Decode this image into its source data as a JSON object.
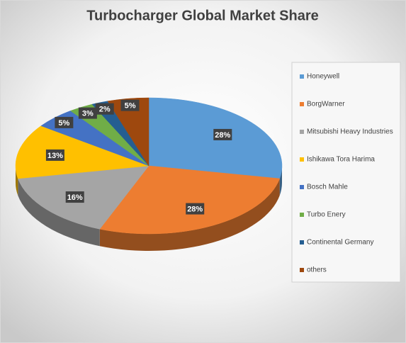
{
  "chart_data": {
    "type": "pie3d",
    "title": "Turbocharger Global Market Share",
    "categories": [
      "Honeywell",
      "BorgWarner",
      "Mitsubishi Heavy Industries",
      "Ishikawa Tora Harima",
      "Bosch Mahle",
      "Turbo Enery",
      "Continental Germany",
      "others"
    ],
    "values": [
      28,
      28,
      16,
      13,
      5,
      3,
      2,
      5
    ],
    "value_labels": [
      "28%",
      "28%",
      "16%",
      "13%",
      "5%",
      "3%",
      "2%",
      "5%"
    ],
    "colors": [
      "#5b9bd5",
      "#ed7d31",
      "#a5a5a5",
      "#ffc000",
      "#4472c4",
      "#70ad47",
      "#255e91",
      "#9e480e"
    ],
    "legend": "right"
  }
}
